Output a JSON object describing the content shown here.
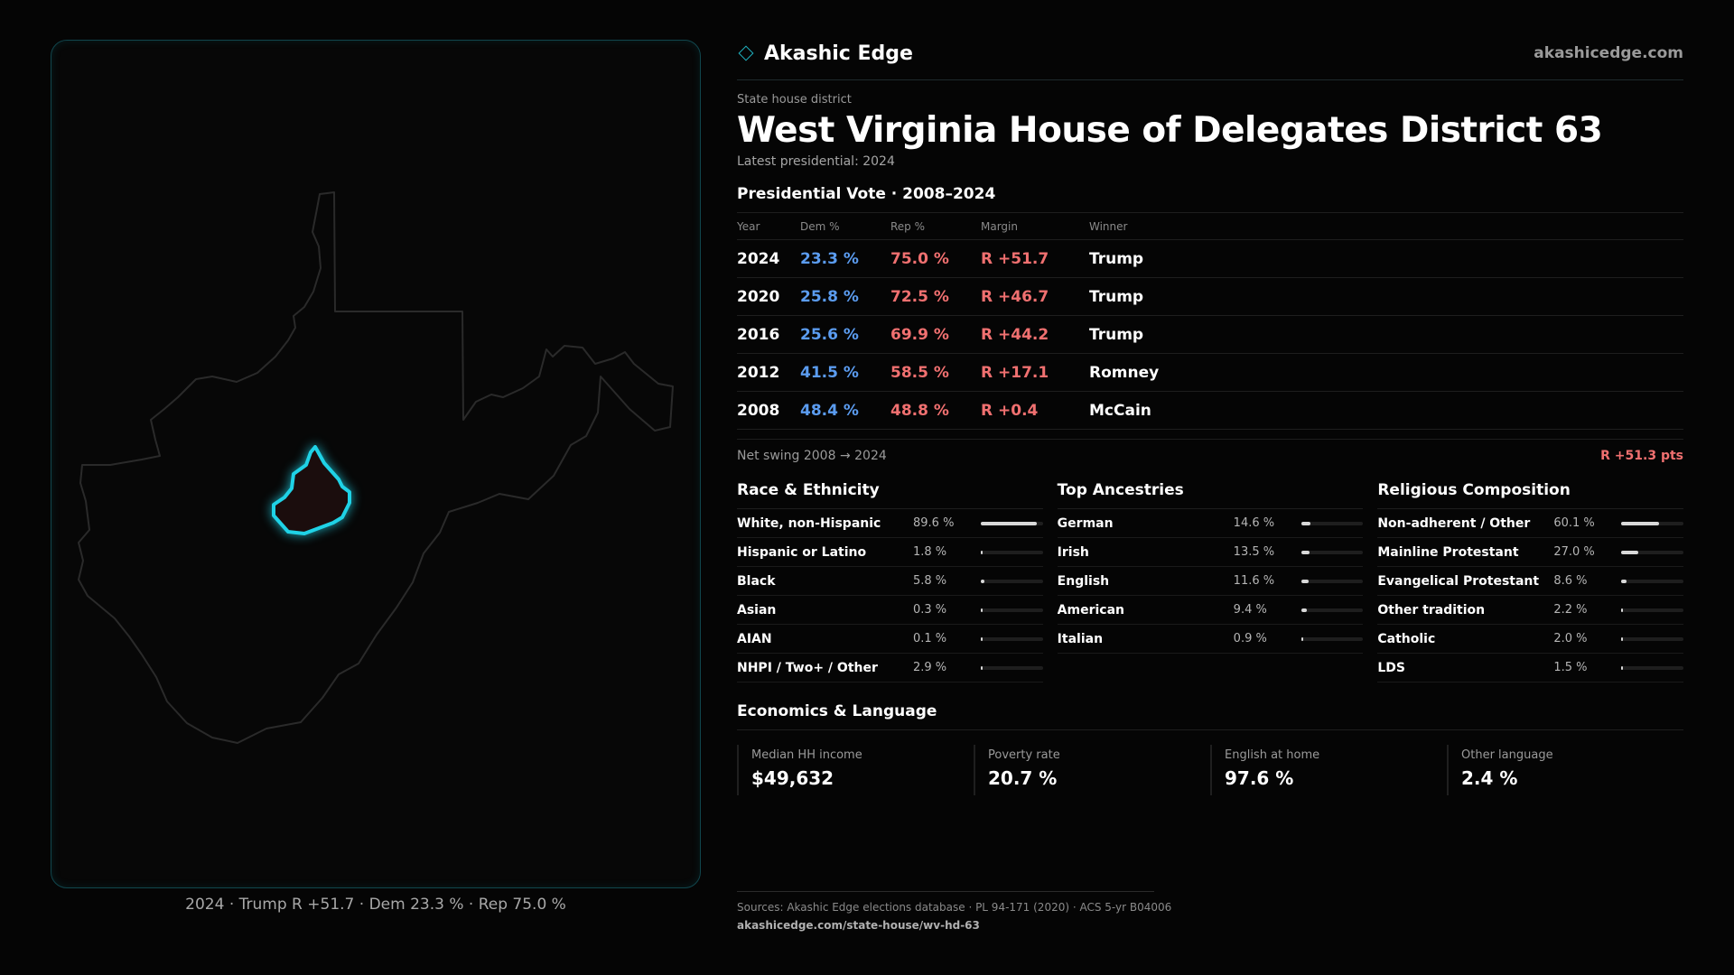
{
  "brand": {
    "name": "Akashic Edge",
    "url": "akashicedge.com",
    "mark_icon": "diamond-outline-icon",
    "accent_color": "#1fb5c4"
  },
  "header": {
    "eyebrow": "State house district",
    "title": "West Virginia House of Delegates District 63",
    "subtitle": "Latest presidential: 2024"
  },
  "presidential": {
    "title": "Presidential Vote · 2008–2024",
    "columns": [
      "Year",
      "Dem %",
      "Rep %",
      "Margin",
      "Winner"
    ],
    "rows": [
      {
        "year": "2024",
        "dem": "23.3 %",
        "rep": "75.0 %",
        "margin": "R +51.7",
        "winner": "Trump"
      },
      {
        "year": "2020",
        "dem": "25.8 %",
        "rep": "72.5 %",
        "margin": "R +46.7",
        "winner": "Trump"
      },
      {
        "year": "2016",
        "dem": "25.6 %",
        "rep": "69.9 %",
        "margin": "R +44.2",
        "winner": "Trump"
      },
      {
        "year": "2012",
        "dem": "41.5 %",
        "rep": "58.5 %",
        "margin": "R +17.1",
        "winner": "Romney"
      },
      {
        "year": "2008",
        "dem": "48.4 %",
        "rep": "48.8 %",
        "margin": "R +0.4",
        "winner": "McCain"
      }
    ],
    "swing_label": "Net swing 2008 → 2024",
    "swing_value": "R +51.3 pts",
    "dem_color": "#5b9cf0",
    "rep_color": "#f07070"
  },
  "race": {
    "title": "Race & Ethnicity",
    "items": [
      {
        "label": "White, non-Hispanic",
        "value": "89.6 %",
        "pct": 89.6
      },
      {
        "label": "Hispanic or Latino",
        "value": "1.8 %",
        "pct": 1.8
      },
      {
        "label": "Black",
        "value": "5.8 %",
        "pct": 5.8
      },
      {
        "label": "Asian",
        "value": "0.3 %",
        "pct": 0.3
      },
      {
        "label": "AIAN",
        "value": "0.1 %",
        "pct": 0.1
      },
      {
        "label": "NHPI / Two+ / Other",
        "value": "2.9 %",
        "pct": 2.9
      }
    ]
  },
  "ancestry": {
    "title": "Top Ancestries",
    "items": [
      {
        "label": "German",
        "value": "14.6 %",
        "pct": 14.6
      },
      {
        "label": "Irish",
        "value": "13.5 %",
        "pct": 13.5
      },
      {
        "label": "English",
        "value": "11.6 %",
        "pct": 11.6
      },
      {
        "label": "American",
        "value": "9.4 %",
        "pct": 9.4
      },
      {
        "label": "Italian",
        "value": "0.9 %",
        "pct": 0.9
      }
    ]
  },
  "religion": {
    "title": "Religious Composition",
    "items": [
      {
        "label": "Non-adherent / Other",
        "value": "60.1 %",
        "pct": 60.1
      },
      {
        "label": "Mainline Protestant",
        "value": "27.0 %",
        "pct": 27.0
      },
      {
        "label": "Evangelical Protestant",
        "value": "8.6 %",
        "pct": 8.6
      },
      {
        "label": "Other tradition",
        "value": "2.2 %",
        "pct": 2.2
      },
      {
        "label": "Catholic",
        "value": "2.0 %",
        "pct": 2.0
      },
      {
        "label": "LDS",
        "value": "1.5 %",
        "pct": 1.5
      }
    ]
  },
  "economics": {
    "title": "Economics & Language",
    "items": [
      {
        "label": "Median HH income",
        "value": "$49,632"
      },
      {
        "label": "Poverty rate",
        "value": "20.7 %"
      },
      {
        "label": "English at home",
        "value": "97.6 %"
      },
      {
        "label": "Other language",
        "value": "2.4 %"
      }
    ]
  },
  "map": {
    "caption": "2024 · Trump R +51.7 · Dem 23.3 % · Rep 75.0 %",
    "district_color": "#1fd2e6"
  },
  "footer": {
    "sources": "Sources: Akashic Edge elections database · PL 94-171 (2020) · ACS 5-yr B04006",
    "url": "akashicedge.com/state-house/wv-hd-63"
  }
}
